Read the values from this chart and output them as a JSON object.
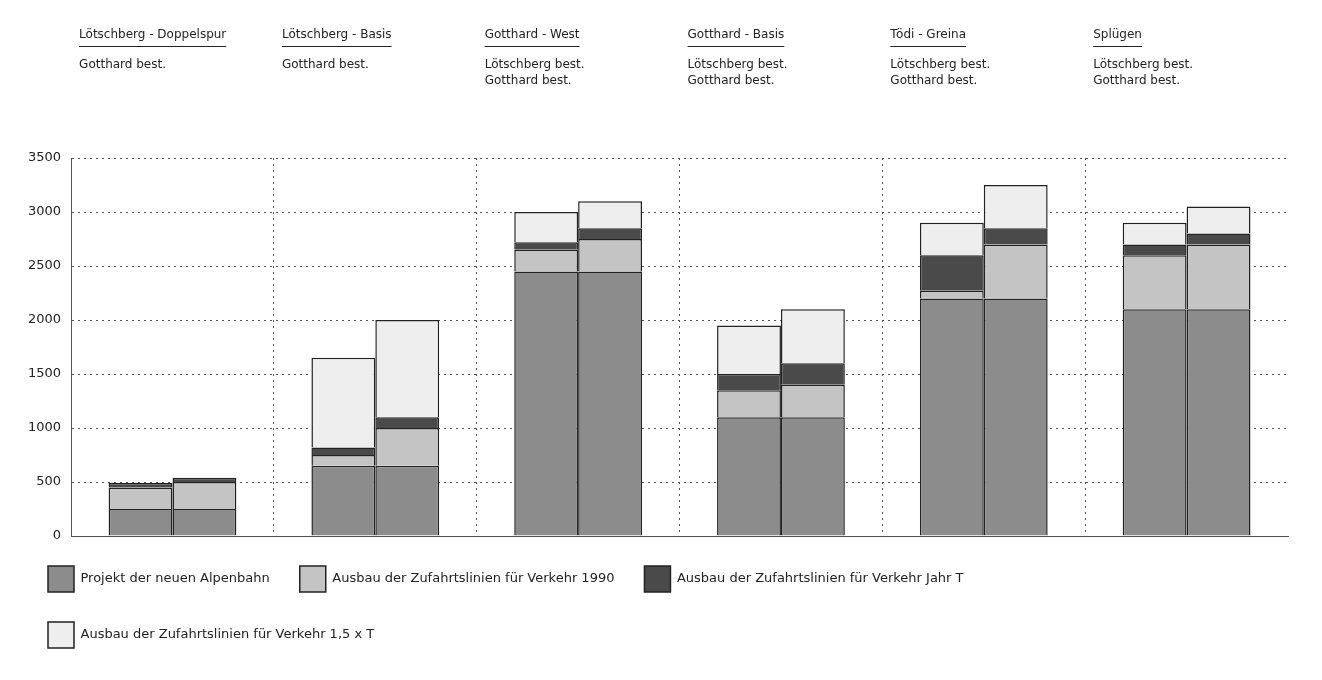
{
  "chart_data": {
    "type": "bar",
    "stacked": true,
    "categories": [
      "Lötschberg - Doppelspur\nGotthard best.",
      null,
      "Lötschberg - Basis\nGotthard best.",
      null,
      "Gotthard - West\nLötschberg best.\nGotthard best.",
      null,
      "Gotthard - Basis\nLötschberg best.\nGotthard best.",
      null,
      "Tödi - Greina\nLötschberg best.\nGotthard best.",
      null,
      "Splügen\nLötschberg best.\nGotthard best.",
      null
    ],
    "series": [
      {
        "name": "Projekt der neuen Alpenbahn",
        "color": "#8c8c8c",
        "values": [
          250,
          250,
          650,
          650,
          2450,
          2450,
          1100,
          1100,
          2200,
          2200,
          2100,
          2100
        ]
      },
      {
        "name": "Ausbau der Zufahrtslinien für Verkehr 1990",
        "color": "#c4c4c4",
        "values": [
          200,
          250,
          100,
          350,
          200,
          300,
          250,
          300,
          70,
          500,
          500,
          600
        ]
      },
      {
        "name": "Ausbau der Zufahrtslinien für Verkehr Jahr T",
        "color": "#4a4a4a",
        "values": [
          40,
          40,
          70,
          100,
          70,
          100,
          150,
          200,
          330,
          150,
          100,
          100
        ]
      },
      {
        "name": "Ausbau der Zufahrtslinien für Verkehr 1,5 x T",
        "color": "#eeeeee",
        "values": [
          null,
          null,
          830,
          900,
          280,
          250,
          450,
          500,
          300,
          400,
          200,
          250
        ]
      }
    ],
    "ylim": [
      0,
      3500
    ],
    "yticks": [
      0,
      500,
      1000,
      1500,
      2000,
      2500,
      3000,
      3500
    ],
    "grid": true,
    "legend": "bottom"
  }
}
